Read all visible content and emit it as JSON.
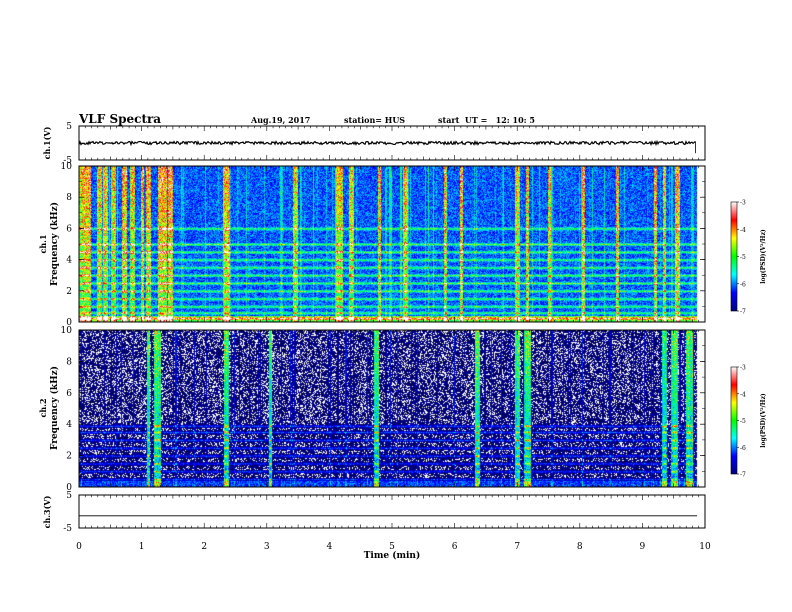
{
  "header": {
    "title": "VLF Spectra",
    "date": "Aug.19, 2017",
    "station": "station= HUS",
    "start": "start  UT =   12: 10: 5"
  },
  "chart_data": [
    {
      "panel": "ch1-waveform",
      "type": "line",
      "ylabel": "ch.1(V)",
      "ylim": [
        -5,
        5
      ],
      "yticks": [
        "5",
        "-5"
      ],
      "xlim": [
        0,
        10
      ],
      "signal": {
        "offset": 0.0,
        "amplitude": 0.45,
        "end_min": 9.85
      },
      "color": "#000000"
    },
    {
      "panel": "ch1-spectrogram",
      "type": "heatmap",
      "ylabel": "Frequency (kHz)",
      "channel_label": "ch.1",
      "ylim": [
        0,
        10
      ],
      "yticks": [
        "0",
        "2",
        "4",
        "6",
        "8",
        "10"
      ],
      "xlim": [
        0,
        10
      ],
      "data_end_min": 9.85,
      "background_level": 0.38,
      "bands_khz": [
        0.25,
        0.6,
        1.0,
        1.5,
        2.0,
        2.5,
        3.0,
        3.5,
        4.0,
        4.5,
        5.0,
        6.0
      ],
      "strong_times_min": [
        0.05,
        0.15,
        0.32,
        0.42,
        0.55,
        0.72,
        0.85,
        1.0,
        1.1,
        1.3,
        1.35,
        1.45,
        2.35,
        3.45,
        4.15,
        4.35,
        4.8,
        5.2,
        5.85,
        6.1,
        7.0,
        7.15,
        7.5,
        8.05,
        8.6,
        9.2,
        9.35,
        9.55
      ]
    },
    {
      "panel": "ch2-spectrogram",
      "type": "heatmap",
      "ylabel": "Frequency (kHz)",
      "channel_label": "ch.2",
      "ylim": [
        0,
        10
      ],
      "yticks": [
        "0",
        "2",
        "4",
        "6",
        "8",
        "10"
      ],
      "xlim": [
        0,
        10
      ],
      "data_end_min": 9.85,
      "background_level": 0.05,
      "bands_khz": [
        0.5,
        1.0,
        1.5,
        2.0,
        2.5,
        3.0,
        3.5,
        3.9
      ],
      "strong_times_min": [
        1.1,
        1.25,
        2.35,
        3.05,
        4.75,
        6.35,
        7.0,
        7.15,
        9.35,
        9.5,
        9.75
      ]
    },
    {
      "panel": "ch3-waveform",
      "type": "line",
      "ylabel": "ch.3(V)",
      "ylim": [
        -5,
        5
      ],
      "yticks": [
        "5",
        "-5"
      ],
      "xlim": [
        0,
        10
      ],
      "xlabel": "Time  (min)",
      "xticks": [
        "0",
        "1",
        "2",
        "3",
        "4",
        "5",
        "6",
        "7",
        "8",
        "9",
        "10"
      ],
      "signal": {
        "offset": -1.3,
        "amplitude": 0.0
      },
      "color": "#000000"
    }
  ],
  "colorbar": {
    "label": "log(PSD)(V²/Hz)",
    "range": [
      -7,
      -3
    ],
    "ticks": [
      "-3",
      "-4",
      "-5",
      "-6",
      "-7"
    ],
    "colors": [
      "#000080",
      "#0000ff",
      "#00ffff",
      "#00ff00",
      "#ffff00",
      "#ff0000",
      "#ffffff"
    ]
  }
}
